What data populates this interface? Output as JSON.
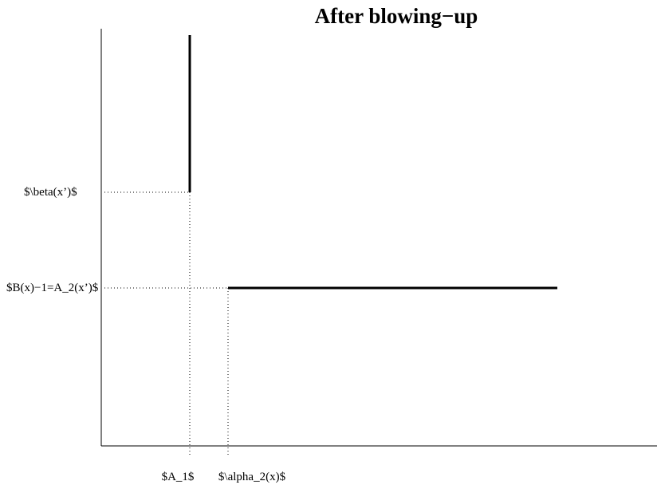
{
  "title": "After blowing−up",
  "y_labels": {
    "beta": "$\\beta(x’)$",
    "B": "$B(x)−1=A_2(x’)$"
  },
  "x_labels": {
    "A1": "$A_1$",
    "alpha2": "$\\alpha_2(x)$"
  },
  "colors": {
    "ink": "#000000",
    "background": "#ffffff"
  }
}
